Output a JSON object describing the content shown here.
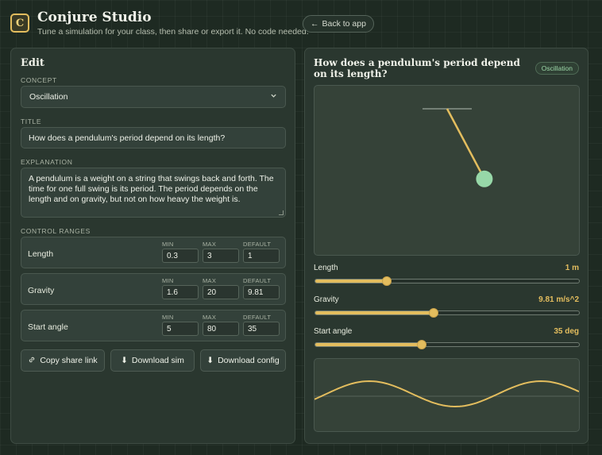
{
  "app": {
    "logo_letter": "C",
    "title": "Conjure Studio",
    "subtitle": "Tune a simulation for your class, then share or export it. No code needed.",
    "back_label": "Back to app"
  },
  "editor": {
    "heading": "Edit",
    "concept_label": "CONCEPT",
    "concept_value": "Oscillation",
    "title_label": "TITLE",
    "title_value": "How does a pendulum's period depend on its length?",
    "explanation_label": "EXPLANATION",
    "explanation_value": "A pendulum is a weight on a string that swings back and forth. The time for one full swing is its period. The period depends on the length and on gravity, but not on how heavy the weight is.",
    "ranges_label": "CONTROL RANGES",
    "col_min": "MIN",
    "col_max": "MAX",
    "col_default": "DEFAULT",
    "ranges": [
      {
        "name": "Length",
        "min": "0.3",
        "max": "3",
        "default": "1"
      },
      {
        "name": "Gravity",
        "min": "1.6",
        "max": "20",
        "default": "9.81"
      },
      {
        "name": "Start angle",
        "min": "5",
        "max": "80",
        "default": "35"
      }
    ],
    "actions": {
      "copy_link": "Copy share link",
      "download_sim": "Download sim",
      "download_config": "Download config"
    }
  },
  "preview": {
    "title": "How does a pendulum's period depend on its length?",
    "badge": "Oscillation",
    "pendulum_angle_deg": 28,
    "controls": [
      {
        "label": "Length",
        "value_text": "1 m",
        "fraction": 0.27
      },
      {
        "label": "Gravity",
        "value_text": "9.81 m/s^2",
        "fraction": 0.45
      },
      {
        "label": "Start angle",
        "value_text": "35 deg",
        "fraction": 0.405
      }
    ]
  },
  "colors": {
    "accent": "#e3bd5e",
    "bob": "#97d8a8",
    "badge_text": "#9cd7a8"
  }
}
